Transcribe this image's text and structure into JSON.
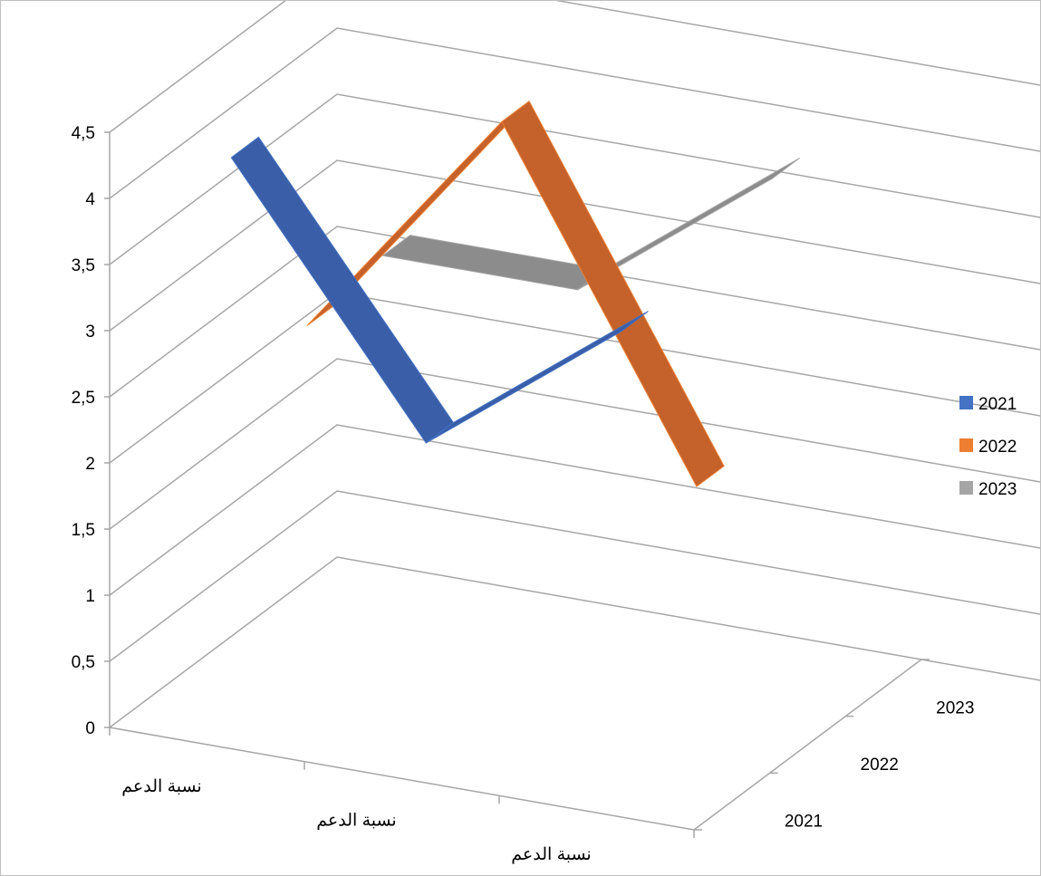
{
  "chart_data": {
    "type": "line",
    "subtype": "3d-line",
    "title": "",
    "xlabel": "",
    "ylabel": "",
    "ylim": [
      0,
      4.5
    ],
    "y_ticks": [
      "0",
      "0,5",
      "1",
      "1,5",
      "2",
      "2,5",
      "3",
      "3,5",
      "4",
      "4,5"
    ],
    "categories": [
      "نسبة الدعم",
      "نسبة الدعم",
      "نسبة الدعم"
    ],
    "depth_labels": [
      "2021",
      "2022",
      "2023"
    ],
    "series": [
      {
        "name": "2021",
        "values": [
          4.3,
          2.4,
          3.5
        ],
        "color": "#4472c4",
        "ribbon_color": "#3a5ea8"
      },
      {
        "name": "2022",
        "values": [
          2.6,
          4.4,
          1.9
        ],
        "color": "#ed7d31",
        "ribbon_color": "#c5612a"
      },
      {
        "name": "2023",
        "values": [
          2.7,
          2.7,
          3.8
        ],
        "color": "#a5a5a5",
        "ribbon_color": "#8c8c8c"
      }
    ],
    "grid": true,
    "legend": "right"
  }
}
